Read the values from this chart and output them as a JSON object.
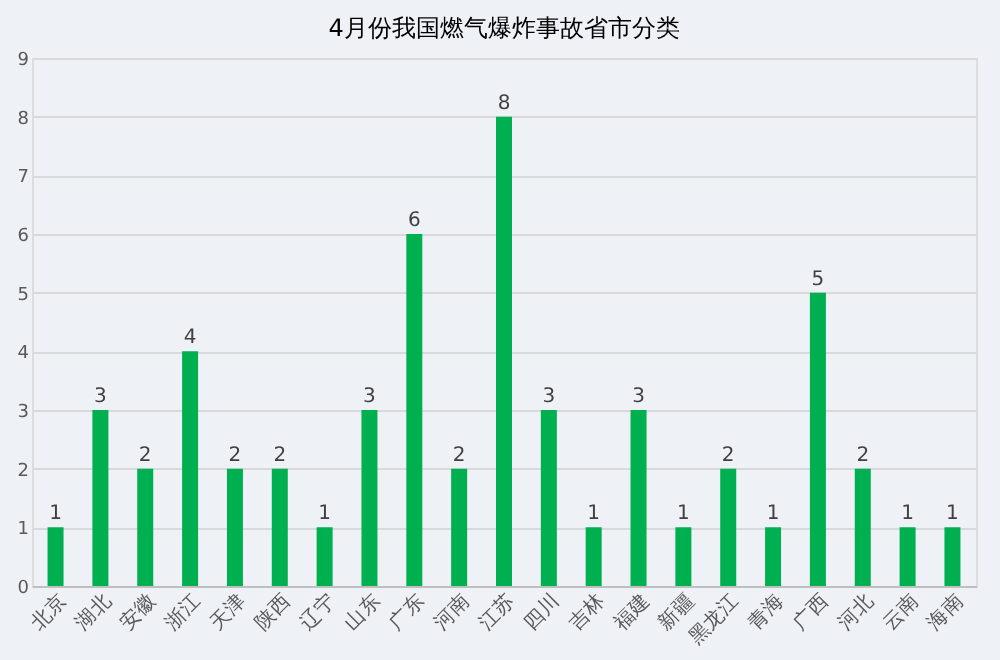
{
  "chart_data": {
    "type": "bar",
    "title": "4月份我国燃气爆炸事故省市分类",
    "categories": [
      "北京",
      "湖北",
      "安徽",
      "浙江",
      "天津",
      "陕西",
      "辽宁",
      "山东",
      "广东",
      "河南",
      "江苏",
      "四川",
      "吉林",
      "福建",
      "新疆",
      "黑龙江",
      "青海",
      "广西",
      "河北",
      "云南",
      "海南"
    ],
    "values": [
      1,
      3,
      2,
      4,
      2,
      2,
      1,
      3,
      6,
      2,
      8,
      3,
      1,
      3,
      1,
      2,
      1,
      5,
      2,
      1,
      1
    ],
    "color": "#00b050",
    "ylim": [
      0,
      9
    ],
    "yticks": [
      0,
      1,
      2,
      3,
      4,
      5,
      6,
      7,
      8,
      9
    ],
    "grid": "y",
    "data_labels": true
  }
}
